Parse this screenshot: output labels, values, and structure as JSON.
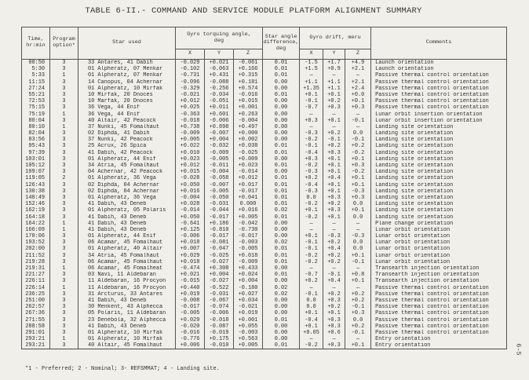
{
  "title": "TABLE 6-II.- COMMAND AND SERVICE MODULE PLATFORM ALIGNMENT SUMMARY",
  "page_number": "6-5",
  "footnote": "*1 - Preferred; 2 - Nominal; 3- REFSMMAT; 4 - Landing site.",
  "table": {
    "headers": {
      "time": "Time,\nhr:min",
      "program": "Program\noption*",
      "star": "Star used",
      "torquing": "Gyro torquing angle,\ndeg",
      "star_diff": "Star angle\ndifference,\ndeg",
      "drift": "Gyro drift, meru",
      "comments": "Comments",
      "axes": [
        "X",
        "Y",
        "Z"
      ]
    },
    "rows": [
      [
        "00:50",
        "3",
        "33 Antares, 41 Dabih",
        "-0.029",
        "+0.021",
        "-0.061",
        "0.01",
        "-1.5",
        "+1.7",
        "+4.9",
        "Launch orientation"
      ],
      [
        "5:30",
        "3",
        "01 Alpheratz, 07 Menkar",
        "-0.102",
        "-0.063",
        "+0.166",
        "0.01",
        "+1.5",
        "+0.9",
        "+2.1",
        "Launch orientation"
      ],
      [
        "5:33",
        "1",
        "01 Alpheratz, 07 Menkar",
        "-0.731",
        "+0.431",
        "+0.315",
        "0.01",
        "—",
        "—",
        "—",
        "Passive thermal control orientation"
      ],
      [
        "11:15",
        "3",
        "14 Canopus, 04 Achernar",
        "-0.096",
        "-0.088",
        "+0.181",
        "0.00",
        "+1.1",
        "+1.1",
        "+2.1",
        "Passive thermal control orientation"
      ],
      [
        "27:24",
        "3",
        "01 Alpheratz, 10 Mirfak",
        "-0.329",
        "-0.256",
        "+0.574",
        "0.00",
        "+1.35",
        "+1.1",
        "+2.4",
        "Passive thermal control orientation"
      ],
      [
        "55:21",
        "3",
        "10 Mirfak, 20 Dnoces",
        "-0.021",
        "-0.034",
        "-0.016",
        "0.01",
        "+0.1",
        "+0.1",
        "+0.0",
        "Passive thermal control orientation"
      ],
      [
        "72:53",
        "3",
        "10 Marfak, 20 Dnoces",
        "+0.012",
        "-0.051",
        "+0.015",
        "0.00",
        "-0.1",
        "+0.2",
        "+0.1",
        "Passive thermal control orientation"
      ],
      [
        "75:15",
        "3",
        "36 Vega, 44 Enif",
        "+0.025",
        "+0.011",
        "+0.001",
        "0.00",
        "-0.7",
        "+0.3",
        "+0.3",
        "Passive thermal control orientation"
      ],
      [
        "75:19",
        "1",
        "36 Vega, 44 Enif",
        "-0.363",
        "+0.601",
        "+0.263",
        "0.00",
        "—",
        "—",
        "—",
        "Lunar orbit insertion orientation"
      ],
      [
        "80:04",
        "3",
        "40 Altair, 42 Peacock",
        "-0.018",
        "-0.006",
        "-0.004",
        "0.00",
        "+0.3",
        "+0.1",
        "-0.1",
        "Lunar orbit insertion orientation"
      ],
      [
        "80:10",
        "1",
        "37 Nunki, 45 Fomalhaut",
        "+0.738",
        "+0.898",
        "+0.497",
        "0.00",
        "—",
        "—",
        "—",
        "Landing site orientation"
      ],
      [
        "82:04",
        "3",
        "02 Diphda, 41 Dabih",
        "-0.009",
        "-0.007",
        "+0.000",
        "0.00",
        "-0.3",
        "+0.2",
        "0.0",
        "Landing site orientation"
      ],
      [
        "83:56",
        "3",
        "37 Nunki, 42 Peacock",
        "+0.005",
        "+0.004",
        "+0.002",
        "0.00",
        "-0.2",
        "-0.1",
        "-0.1",
        "Landing site orientation"
      ],
      [
        "95:43",
        "3",
        "25 Acrux, 26 Spica",
        "+0.022",
        "-0.032",
        "+0.038",
        "0.01",
        "-0.1",
        "+0.2",
        "+0.2",
        "Landing site orientation"
      ],
      [
        "97:39",
        "3",
        "41 Dabih, 42 Peacock",
        "+0.010",
        "-0.009",
        "-0.025",
        "0.01",
        "-0.4",
        "+0.3",
        "-0.2",
        "Landing site orientation"
      ],
      [
        "103:01",
        "3",
        "01 Alpheratz, 44 Enif",
        "+0.023",
        "-0.005",
        "+0.009",
        "0.00",
        "+0.3",
        "+0.1",
        "+0.1",
        "Landing site orientation"
      ],
      [
        "105:12",
        "3",
        "34 Atria, 45 Fomalhaut",
        "+0.012",
        "-0.011",
        "+0.023",
        "0.01",
        "-0.2",
        "+0.1",
        "+0.3",
        "Landing site orientation"
      ],
      [
        "109:07",
        "3",
        "04 Achernar, 42 Peacock",
        "+0.015",
        "-0.004",
        "-0.014",
        "0.00",
        "-0.3",
        "+0.1",
        "-0.2",
        "Landing site orientation"
      ],
      [
        "119:05",
        "2",
        "01 Alpheratz, 36 Vega",
        "-0.028",
        "-0.058",
        "+0.012",
        "0.01",
        "+0.2",
        "+0.4",
        "+0.1",
        "Landing site orientation"
      ],
      [
        "126:43",
        "3",
        "02 Diphda, 04 Achernar",
        "+0.050",
        "-0.007",
        "+0.017",
        "0.01",
        "-0.4",
        "+0.1",
        "+0.1",
        "Landing site orientation"
      ],
      [
        "130:38",
        "3",
        "02 Diphda, 04 Achernar",
        "+0.016",
        "-0.005",
        "-0.017",
        "0.01",
        "-0.3",
        "+0.1",
        "-0.3",
        "Landing site orientation"
      ],
      [
        "140:49",
        "3",
        "01 Alpheratz, 36 Vega",
        "-0.004",
        "-0.050",
        "+0.041",
        "0.01",
        "0.0",
        "+0.3",
        "+0.3",
        "Landing site orientation"
      ],
      [
        "152:46",
        "3",
        "41 Dabih, 43 Deneb",
        "+0.028",
        "-0.031",
        "0.000",
        "0.01",
        "-0.2",
        "+0.2",
        "0.0",
        "Landing site orientation"
      ],
      [
        "162:19",
        "3",
        "01 Alpheratz, 05 Polaris",
        "-0.014",
        "-0.044",
        "+0.016",
        "0.02",
        "+0.1",
        "+0.3",
        "+0.1",
        "Landing site orientation"
      ],
      [
        "164:18",
        "3",
        "41 Dabih, 43 Deneb",
        "+0.050",
        "-0.017",
        "+0.005",
        "0.01",
        "-0.2",
        "+0.1",
        "0.0",
        "Landing site orientation"
      ],
      [
        "164:22",
        "1",
        "41 Dabih, 43 Deneb",
        "-0.641",
        "+0.186",
        "-0.042",
        "0.00",
        "—",
        "—",
        "—",
        "Plane change orientation"
      ],
      [
        "166:09",
        "1",
        "41 Dabih, 43 Deneb",
        "+0.125",
        "-0.810",
        "-0.730",
        "0.00",
        "—",
        "—",
        "—",
        "Lunar orbit orientation"
      ],
      [
        "170:06",
        "3",
        "01 Alpheratz, 44 Enif",
        "-0.006",
        "-0.017",
        "-0.017",
        "0.00",
        "+0.1",
        "-0.3",
        "-0.3",
        "Lunar orbit orientation"
      ],
      [
        "193:52",
        "3",
        "06 Acamar, 45 Fomalhaut",
        "+0.018",
        "-0.081",
        "-0.003",
        "0.02",
        "-0.1",
        "+0.2",
        "0.0",
        "Lunar orbit orientation"
      ],
      [
        "202:00",
        "3",
        "01 Alpheratz, 40 Altair",
        "+0.007",
        "-0.047",
        "-0.005",
        "0.01",
        "-0.1",
        "+0.4",
        "0.0",
        "Lunar orbit orientation"
      ],
      [
        "211:52",
        "3",
        "34 Atria, 45 Fomalhaut",
        "+0.029",
        "-0.025",
        "+0.018",
        "0.01",
        "-0.2",
        "+0.2",
        "+0.1",
        "Lunar orbit orientation"
      ],
      [
        "219:28",
        "3",
        "06 Acamar, 45 Fomalhaut",
        "+0.018",
        "-0.027",
        "-0.009",
        "0.01",
        "-0.2",
        "+0.2",
        "-0.1",
        "Lunar orbit orientation"
      ],
      [
        "219:31",
        "1",
        "06 Acamar, 45 Fomalheat",
        "-0.474",
        "+0.308",
        "+0.433",
        "0.00",
        "—",
        "—",
        "—",
        "Transearth injection orientation"
      ],
      [
        "221:27",
        "3",
        "03 Navi, 11 Aldebaran",
        "+0.021",
        "+0.004",
        "+0.024",
        "0.01",
        "-0.7",
        "-0.1",
        "+0.8",
        "Transearth injection orientation"
      ],
      [
        "226:11",
        "3",
        "11 Aldebaran, 16 Procyon",
        "-0.015",
        "-0.027",
        "+0.004",
        "0.00",
        "+0.2",
        "+0.4",
        "+0.1",
        "Transearth injection orientation"
      ],
      [
        "226:14",
        "1",
        "11 Aldebaran, 16 Procyon",
        "+0.440",
        "-0.522",
        "-0.180",
        "0.02",
        "—",
        "—",
        "—",
        "Passive thermal control orientation"
      ],
      [
        "236:25",
        "3",
        "31 Arcturus, 33 Antares",
        "+0.019",
        "-0.031",
        "+0.027",
        "0.02",
        "-0.1",
        "+0.2",
        "+0.2",
        "Passive thermal control orientation"
      ],
      [
        "251:00",
        "3",
        "41 Dabih, 43 Deneb",
        "-0.008",
        "-0.067",
        "+0.034",
        "0.00",
        "0.0",
        "+0.3",
        "+0.2",
        "Passive thermal control orientation"
      ],
      [
        "262:57",
        "3",
        "30 Menkent, 43 Alphecca",
        "-0.017",
        "-0.074",
        "-0.021",
        "0.00",
        "0.0",
        "+0.2",
        "-0.1",
        "Passive thermal control orientation"
      ],
      [
        "267:36",
        "3",
        "05 Polaris, 11 Aldebaran",
        "-0.005",
        "-0.006",
        "+0.019",
        "0.00",
        "+0.1",
        "+0.1",
        "+0.3",
        "Passive thermal control orientation"
      ],
      [
        "271:55",
        "3",
        "23 Denebola, 32 Alphecca",
        "+0.029",
        "-0.018",
        "+0.001",
        "0.01",
        "-0.4",
        "+0.3",
        "0.0",
        "Passive thermal control orientation"
      ],
      [
        "288:58",
        "3",
        "41 Dabih, 43 Deneb",
        "-0.020",
        "-0.087",
        "+0.055",
        "0.00",
        "+0.1",
        "+0.3",
        "+0.2",
        "Passive thermal control orientation"
      ],
      [
        "291:01",
        "3",
        "01 Alpheratz, 10 Mirfak",
        "-0.016",
        "-0.019",
        "-0.003",
        "0.00",
        "+0.05",
        "+0.6",
        "-0.1",
        "Passive thermal control orientation"
      ],
      [
        "293:21",
        "1",
        "01 Alpheratz, 10 Mirfak",
        "-0.776",
        "+0.175",
        "+0.563",
        "0.00",
        "—",
        "—",
        "—",
        "Entry orientation"
      ],
      [
        "293:21",
        "3",
        "40 Altair, 45 Fomalhaut",
        "+0.006",
        "-0.010",
        "+0.005",
        "0.01",
        "-0.2",
        "+0.3",
        "+0.1",
        "Entry orientation"
      ]
    ]
  }
}
